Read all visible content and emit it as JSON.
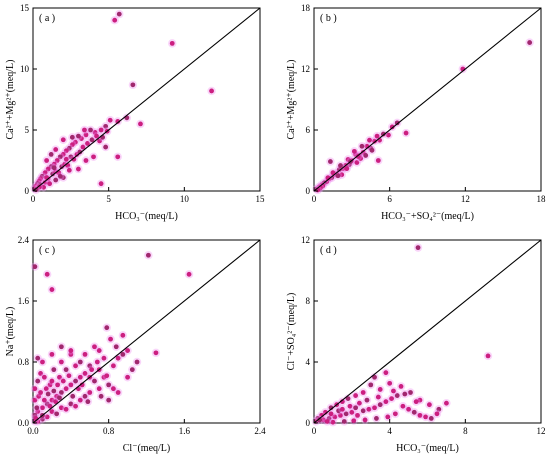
{
  "chart_data": [
    {
      "type": "scatter",
      "panel_label": "( a )",
      "xlabel": "HCO₃⁻(meq/L)",
      "ylabel": "Ca²⁺+Mg²⁺(meq/L)",
      "xlim": [
        0,
        15
      ],
      "ylim": [
        0,
        15
      ],
      "xticks": [
        0,
        5,
        10,
        15
      ],
      "yticks": [
        0,
        5,
        10,
        15
      ],
      "xtick_labels": [
        "0",
        "5",
        "10",
        "15"
      ],
      "ytick_labels": [
        "0",
        "5",
        "10",
        "15"
      ],
      "reference_line": [
        [
          0,
          0
        ],
        [
          15,
          15
        ]
      ],
      "points": [
        [
          5.7,
          14.5
        ],
        [
          5.4,
          14.0
        ],
        [
          9.2,
          12.1
        ],
        [
          6.6,
          8.7
        ],
        [
          11.8,
          8.2
        ],
        [
          7.1,
          5.5
        ],
        [
          6.2,
          6.0
        ],
        [
          5.6,
          5.7
        ],
        [
          5.1,
          5.8
        ],
        [
          4.8,
          5.3
        ],
        [
          4.5,
          5.0
        ],
        [
          4.1,
          4.8
        ],
        [
          3.8,
          5.0
        ],
        [
          3.5,
          4.6
        ],
        [
          3.2,
          4.3
        ],
        [
          3.0,
          4.5
        ],
        [
          2.8,
          4.0
        ],
        [
          2.6,
          3.8
        ],
        [
          2.4,
          3.5
        ],
        [
          2.2,
          3.3
        ],
        [
          2.0,
          3.0
        ],
        [
          1.8,
          2.8
        ],
        [
          1.6,
          2.5
        ],
        [
          1.4,
          2.2
        ],
        [
          1.2,
          2.0
        ],
        [
          1.0,
          1.8
        ],
        [
          0.8,
          1.5
        ],
        [
          0.6,
          1.2
        ],
        [
          0.5,
          1.0
        ],
        [
          0.4,
          0.8
        ],
        [
          0.3,
          0.6
        ],
        [
          0.2,
          0.4
        ],
        [
          0.1,
          0.2
        ],
        [
          0.5,
          0.5
        ],
        [
          0.8,
          0.7
        ],
        [
          1.0,
          1.0
        ],
        [
          1.3,
          1.4
        ],
        [
          1.5,
          1.6
        ],
        [
          1.7,
          1.5
        ],
        [
          1.9,
          2.0
        ],
        [
          2.1,
          2.2
        ],
        [
          2.3,
          2.1
        ],
        [
          2.5,
          2.8
        ],
        [
          2.7,
          2.6
        ],
        [
          2.9,
          3.0
        ],
        [
          3.1,
          3.2
        ],
        [
          3.3,
          3.6
        ],
        [
          3.6,
          3.9
        ],
        [
          3.9,
          4.2
        ],
        [
          4.2,
          4.5
        ],
        [
          4.4,
          4.1
        ],
        [
          4.6,
          4.4
        ],
        [
          4.9,
          4.9
        ],
        [
          1.5,
          3.4
        ],
        [
          1.2,
          3.0
        ],
        [
          0.9,
          2.5
        ],
        [
          2.0,
          4.2
        ],
        [
          2.6,
          4.4
        ],
        [
          3.4,
          5.0
        ],
        [
          1.1,
          0.6
        ],
        [
          2.0,
          1.1
        ],
        [
          3.0,
          1.8
        ],
        [
          4.0,
          2.8
        ],
        [
          4.8,
          3.6
        ],
        [
          4.5,
          0.6
        ],
        [
          5.6,
          2.8
        ],
        [
          1.8,
          1.2
        ],
        [
          2.4,
          1.7
        ],
        [
          0.7,
          0.3
        ],
        [
          1.5,
          0.9
        ],
        [
          3.5,
          2.5
        ],
        [
          2.2,
          2.6
        ],
        [
          1.4,
          1.9
        ],
        [
          0.9,
          1.1
        ],
        [
          0.4,
          0.3
        ],
        [
          0.2,
          0.1
        ]
      ]
    },
    {
      "type": "scatter",
      "panel_label": "( b )",
      "xlabel": "HCO₃⁻+SO₄²⁻(meq/L)",
      "ylabel": "Ca²⁺+Mg²⁺(meq/L)",
      "xlim": [
        0,
        18
      ],
      "ylim": [
        0,
        18
      ],
      "xticks": [
        0,
        6,
        12,
        18
      ],
      "yticks": [
        0,
        6,
        12,
        18
      ],
      "xtick_labels": [
        "0",
        "6",
        "12",
        "18"
      ],
      "ytick_labels": [
        "0",
        "6",
        "12",
        "18"
      ],
      "reference_line": [
        [
          0,
          0
        ],
        [
          18,
          18
        ]
      ],
      "points": [
        [
          17.1,
          14.6
        ],
        [
          11.8,
          12.0
        ],
        [
          7.3,
          5.7
        ],
        [
          6.6,
          6.7
        ],
        [
          6.2,
          6.3
        ],
        [
          5.9,
          5.5
        ],
        [
          5.5,
          5.6
        ],
        [
          5.2,
          5.0
        ],
        [
          4.8,
          4.9
        ],
        [
          4.5,
          4.2
        ],
        [
          4.2,
          4.4
        ],
        [
          3.9,
          3.8
        ],
        [
          3.6,
          3.5
        ],
        [
          3.3,
          3.6
        ],
        [
          3.0,
          3.0
        ],
        [
          2.8,
          2.6
        ],
        [
          2.5,
          2.5
        ],
        [
          2.3,
          2.2
        ],
        [
          2.0,
          2.1
        ],
        [
          1.8,
          1.7
        ],
        [
          1.6,
          1.6
        ],
        [
          1.4,
          1.3
        ],
        [
          1.2,
          1.2
        ],
        [
          1.0,
          0.9
        ],
        [
          0.8,
          0.8
        ],
        [
          0.6,
          0.6
        ],
        [
          0.4,
          0.4
        ],
        [
          0.2,
          0.2
        ],
        [
          1.1,
          1.3
        ],
        [
          1.5,
          1.8
        ],
        [
          2.1,
          2.5
        ],
        [
          2.7,
          3.1
        ],
        [
          3.2,
          3.9
        ],
        [
          3.8,
          4.4
        ],
        [
          4.4,
          5.0
        ],
        [
          5.0,
          5.4
        ],
        [
          1.3,
          2.9
        ],
        [
          2.2,
          1.6
        ],
        [
          3.4,
          2.8
        ],
        [
          4.6,
          4.0
        ],
        [
          5.1,
          3.0
        ],
        [
          0.7,
          0.5
        ],
        [
          1.9,
          1.5
        ],
        [
          2.6,
          2.2
        ],
        [
          3.7,
          3.2
        ],
        [
          4.1,
          3.5
        ],
        [
          0.5,
          0.3
        ],
        [
          0.3,
          0.1
        ],
        [
          2.9,
          2.9
        ],
        [
          3.5,
          3.4
        ]
      ]
    },
    {
      "type": "scatter",
      "panel_label": "( c )",
      "xlabel": "Cl⁻(meq/L)",
      "ylabel": "Na⁺(meq/L)",
      "xlim": [
        0,
        2.4
      ],
      "ylim": [
        0,
        2.4
      ],
      "xticks": [
        0,
        0.8,
        1.6,
        2.4
      ],
      "yticks": [
        0,
        0.8,
        1.6,
        2.4
      ],
      "xtick_labels": [
        "0.0",
        "0.8",
        "1.6",
        "2.4"
      ],
      "ytick_labels": [
        "0.0",
        "0.8",
        "1.6",
        "2.4"
      ],
      "reference_line": [
        [
          0,
          0
        ],
        [
          2.4,
          2.4
        ]
      ],
      "points": [
        [
          0.02,
          2.05
        ],
        [
          0.15,
          1.95
        ],
        [
          0.2,
          1.75
        ],
        [
          1.22,
          2.2
        ],
        [
          1.65,
          1.95
        ],
        [
          1.3,
          0.92
        ],
        [
          0.78,
          1.25
        ],
        [
          0.82,
          1.1
        ],
        [
          0.95,
          1.15
        ],
        [
          0.88,
          1.0
        ],
        [
          0.7,
          0.95
        ],
        [
          0.75,
          0.85
        ],
        [
          0.6,
          0.75
        ],
        [
          0.55,
          0.65
        ],
        [
          0.5,
          0.6
        ],
        [
          0.45,
          0.55
        ],
        [
          0.4,
          0.5
        ],
        [
          0.35,
          0.45
        ],
        [
          0.3,
          0.4
        ],
        [
          0.25,
          0.35
        ],
        [
          0.2,
          0.3
        ],
        [
          0.15,
          0.25
        ],
        [
          0.1,
          0.2
        ],
        [
          0.05,
          0.15
        ],
        [
          0.02,
          0.1
        ],
        [
          0.02,
          0.3
        ],
        [
          0.02,
          0.45
        ],
        [
          0.05,
          0.55
        ],
        [
          0.08,
          0.65
        ],
        [
          0.1,
          0.8
        ],
        [
          0.05,
          0.85
        ],
        [
          0.12,
          0.6
        ],
        [
          0.18,
          0.5
        ],
        [
          0.22,
          0.7
        ],
        [
          0.28,
          0.6
        ],
        [
          0.3,
          0.8
        ],
        [
          0.35,
          0.7
        ],
        [
          0.4,
          0.9
        ],
        [
          0.45,
          0.75
        ],
        [
          0.5,
          0.8
        ],
        [
          0.55,
          0.9
        ],
        [
          0.6,
          0.6
        ],
        [
          0.65,
          0.55
        ],
        [
          0.7,
          0.7
        ],
        [
          0.75,
          0.6
        ],
        [
          0.8,
          0.5
        ],
        [
          0.85,
          0.75
        ],
        [
          0.9,
          0.85
        ],
        [
          0.95,
          0.9
        ],
        [
          1.0,
          0.95
        ],
        [
          0.5,
          0.3
        ],
        [
          0.4,
          0.25
        ],
        [
          0.3,
          0.2
        ],
        [
          0.2,
          0.15
        ],
        [
          0.1,
          0.05
        ],
        [
          0.05,
          0.02
        ],
        [
          0.15,
          0.08
        ],
        [
          0.25,
          0.12
        ],
        [
          0.35,
          0.18
        ],
        [
          0.45,
          0.22
        ],
        [
          0.55,
          0.35
        ],
        [
          0.6,
          0.4
        ],
        [
          0.7,
          0.45
        ],
        [
          0.8,
          0.3
        ],
        [
          0.9,
          0.4
        ],
        [
          1.0,
          0.6
        ],
        [
          1.1,
          0.8
        ],
        [
          0.02,
          0.02
        ],
        [
          0.03,
          0.06
        ],
        [
          0.04,
          0.2
        ],
        [
          0.06,
          0.35
        ],
        [
          0.08,
          0.4
        ],
        [
          0.1,
          0.1
        ],
        [
          0.12,
          0.3
        ],
        [
          0.14,
          0.45
        ],
        [
          0.16,
          0.38
        ],
        [
          0.18,
          0.22
        ],
        [
          0.2,
          0.55
        ],
        [
          0.22,
          0.42
        ],
        [
          0.24,
          0.28
        ],
        [
          0.26,
          0.5
        ],
        [
          0.28,
          0.33
        ],
        [
          0.32,
          0.55
        ],
        [
          0.38,
          0.62
        ],
        [
          0.42,
          0.35
        ],
        [
          0.48,
          0.45
        ],
        [
          0.52,
          0.5
        ],
        [
          0.58,
          0.28
        ],
        [
          0.62,
          0.7
        ],
        [
          0.68,
          0.8
        ],
        [
          0.72,
          0.35
        ],
        [
          0.78,
          0.62
        ],
        [
          0.85,
          0.45
        ],
        [
          1.05,
          0.7
        ],
        [
          0.65,
          1.0
        ],
        [
          0.4,
          0.95
        ],
        [
          0.3,
          1.0
        ],
        [
          0.2,
          0.9
        ]
      ]
    },
    {
      "type": "scatter",
      "panel_label": "( d )",
      "xlabel": "HCO₃⁻(meq/L)",
      "ylabel": "Cl⁻+SO₄²⁻(meq/L)",
      "xlim": [
        0,
        12
      ],
      "ylim": [
        0,
        12
      ],
      "xticks": [
        0,
        4,
        8,
        12
      ],
      "yticks": [
        0,
        4,
        8,
        12
      ],
      "xtick_labels": [
        "0",
        "4",
        "8",
        "12"
      ],
      "ytick_labels": [
        "0",
        "4",
        "8",
        "12"
      ],
      "reference_line": [
        [
          0,
          0
        ],
        [
          12,
          12
        ]
      ],
      "points": [
        [
          5.5,
          11.5
        ],
        [
          9.2,
          4.4
        ],
        [
          3.8,
          3.3
        ],
        [
          3.2,
          3.0
        ],
        [
          4.0,
          2.6
        ],
        [
          4.6,
          2.4
        ],
        [
          5.1,
          2.0
        ],
        [
          5.6,
          1.5
        ],
        [
          6.1,
          1.2
        ],
        [
          6.6,
          0.9
        ],
        [
          7.0,
          1.3
        ],
        [
          3.5,
          2.2
        ],
        [
          3.0,
          2.5
        ],
        [
          2.6,
          2.0
        ],
        [
          2.2,
          1.8
        ],
        [
          1.8,
          1.6
        ],
        [
          1.5,
          1.4
        ],
        [
          1.2,
          1.2
        ],
        [
          0.9,
          1.0
        ],
        [
          0.6,
          0.7
        ],
        [
          0.4,
          0.5
        ],
        [
          0.2,
          0.3
        ],
        [
          0.1,
          0.1
        ],
        [
          0.5,
          0.2
        ],
        [
          0.8,
          0.3
        ],
        [
          1.1,
          0.4
        ],
        [
          1.4,
          0.5
        ],
        [
          1.7,
          0.6
        ],
        [
          2.0,
          0.7
        ],
        [
          2.3,
          0.5
        ],
        [
          2.6,
          0.8
        ],
        [
          2.9,
          0.9
        ],
        [
          3.2,
          1.0
        ],
        [
          3.5,
          1.2
        ],
        [
          3.8,
          1.4
        ],
        [
          4.1,
          1.6
        ],
        [
          4.4,
          1.8
        ],
        [
          4.7,
          1.1
        ],
        [
          5.0,
          0.9
        ],
        [
          5.3,
          0.7
        ],
        [
          5.6,
          0.5
        ],
        [
          5.9,
          0.4
        ],
        [
          6.2,
          0.3
        ],
        [
          4.3,
          0.6
        ],
        [
          3.9,
          0.4
        ],
        [
          3.3,
          0.3
        ],
        [
          2.7,
          0.2
        ],
        [
          2.1,
          0.15
        ],
        [
          1.6,
          0.1
        ],
        [
          1.0,
          0.05
        ],
        [
          0.7,
          0.1
        ],
        [
          1.3,
          0.8
        ],
        [
          1.9,
          1.1
        ],
        [
          2.4,
          1.3
        ],
        [
          2.8,
          1.5
        ],
        [
          3.4,
          1.7
        ],
        [
          4.2,
          2.1
        ],
        [
          4.8,
          1.9
        ],
        [
          5.4,
          1.4
        ],
        [
          6.5,
          0.6
        ],
        [
          0.3,
          0.2
        ],
        [
          0.9,
          0.6
        ],
        [
          1.5,
          0.9
        ],
        [
          2.2,
          1.0
        ]
      ]
    }
  ]
}
